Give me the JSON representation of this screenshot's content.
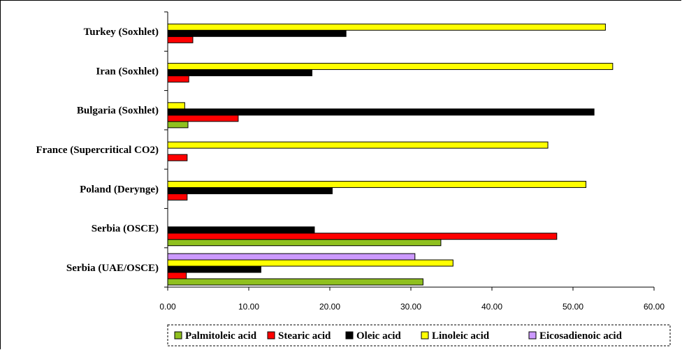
{
  "chart_data": {
    "type": "bar",
    "orientation": "horizontal",
    "categories": [
      "Turkey (Soxhlet)",
      "Iran (Soxhlet)",
      "Bulgaria (Soxhlet)",
      "France (Supercritical CO2)",
      "Poland (Derynge)",
      "Serbia (OSCE)",
      "Serbia (UAE/OSCE)"
    ],
    "series": [
      {
        "name": "Palmitoleic acid",
        "color": "#8fc01f",
        "values": [
          0,
          0,
          2.5,
          0,
          0,
          33.7,
          31.5
        ]
      },
      {
        "name": "Stearic acid",
        "color": "#ff0000",
        "values": [
          3.1,
          2.6,
          8.7,
          2.4,
          2.4,
          48.0,
          2.3
        ]
      },
      {
        "name": "Oleic acid",
        "color": "#000000",
        "values": [
          22.0,
          17.8,
          52.6,
          0,
          20.3,
          18.1,
          11.5
        ]
      },
      {
        "name": "Linoleic acid",
        "color": "#ffff00",
        "values": [
          54.0,
          54.9,
          2.1,
          46.9,
          51.6,
          0,
          35.2
        ]
      },
      {
        "name": "Eicosadienoic acid",
        "color": "#cc99ff",
        "values": [
          0,
          0,
          0,
          0,
          0,
          0,
          30.5
        ]
      }
    ],
    "xlim": [
      0,
      60
    ],
    "xticks": [
      "0.00",
      "10.00",
      "20.00",
      "30.00",
      "40.00",
      "50.00",
      "60.00"
    ],
    "title": "",
    "xlabel": "",
    "ylabel": "",
    "grid": false,
    "legend": "bottom"
  }
}
